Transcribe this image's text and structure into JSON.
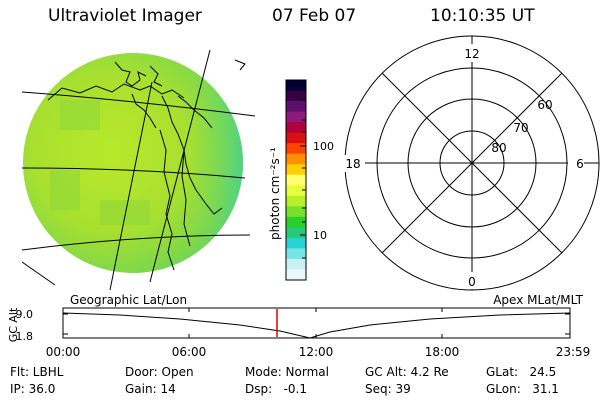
{
  "header": {
    "instrument": "Ultraviolet Imager",
    "date": "07 Feb 07",
    "time": "10:10:35 UT"
  },
  "colorbar": {
    "unit_label": "photon cm⁻²s⁻¹",
    "ticks": [
      "100",
      "10"
    ],
    "colors": [
      "#000033",
      "#3a0044",
      "#5e0f6e",
      "#8c1a7a",
      "#b0003b",
      "#d81010",
      "#ff4400",
      "#ff9000",
      "#ffd000",
      "#ffff70",
      "#e6ff3c",
      "#b5f02a",
      "#78e02a",
      "#2ad02a",
      "#28c878",
      "#28d2d2",
      "#78e6e6",
      "#c8f2f2",
      "#e8f8f8"
    ]
  },
  "earth_map": {
    "caption": "Geographic Lat/Lon"
  },
  "polar_plot": {
    "caption": "Apex MLat/MLT",
    "mlt_labels": {
      "top": "12",
      "left": "18",
      "right": "6",
      "bottom": "0"
    },
    "lat_labels": [
      "60",
      "70",
      "80"
    ]
  },
  "altitude_plot": {
    "ylabel": "GC Alt",
    "yticks": [
      "9.0",
      "1.8"
    ],
    "xticks": [
      "00:00",
      "06:00",
      "12:00",
      "18:00",
      "23:59"
    ]
  },
  "status": {
    "flt": "Flt: LBHL",
    "ip": "IP: 36.0",
    "door": "Door: Open",
    "gain": "Gain: 14",
    "mode": "Mode: Normal",
    "dsp": "Dsp:   -0.1",
    "gc_alt": "GC Alt: 4.2 Re",
    "seq": "Seq: 39",
    "glat": "GLat:   24.5",
    "glon": "GLon:   31.1"
  }
}
